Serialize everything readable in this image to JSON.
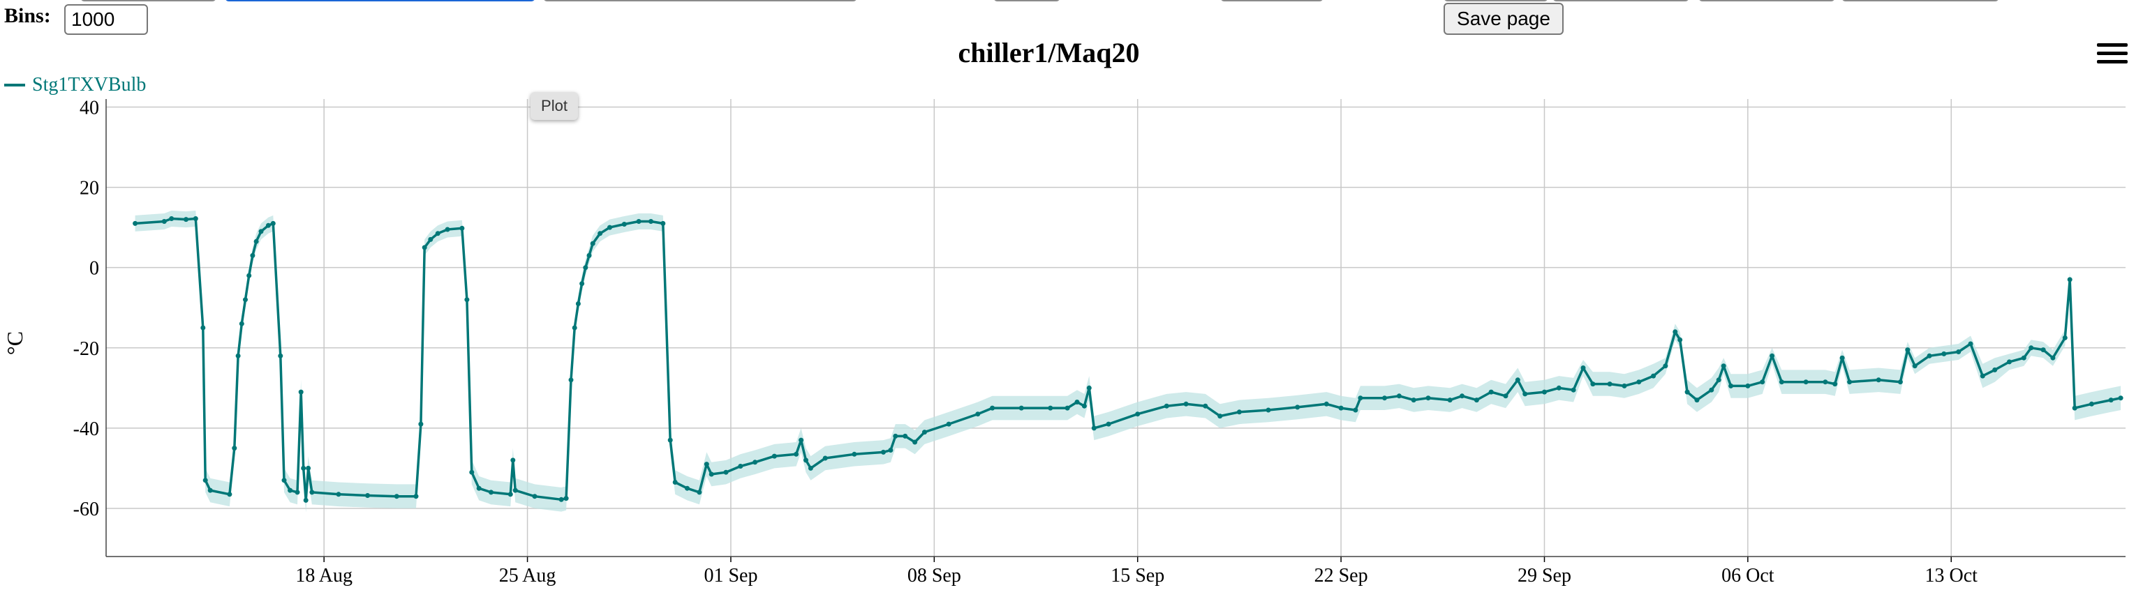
{
  "controls": {
    "bins_label": "Bins:",
    "bins_value": "1000",
    "save_label": "Save page",
    "tooltip": "Plot"
  },
  "chart_data": {
    "type": "line",
    "title": "chiller1/Maq20",
    "xlabel": "",
    "ylabel": "°C",
    "ylim": [
      -72,
      42
    ],
    "yticks": [
      40,
      20,
      0,
      -20,
      -40,
      -60
    ],
    "xlim": [
      "2024-08-10T12:00",
      "2024-10-19T00:00"
    ],
    "xticks": [
      {
        "date": "2024-08-18",
        "label": "18 Aug"
      },
      {
        "date": "2024-08-25",
        "label": "25 Aug"
      },
      {
        "date": "2024-09-01",
        "label": "01 Sep"
      },
      {
        "date": "2024-09-08",
        "label": "08 Sep"
      },
      {
        "date": "2024-09-15",
        "label": "15 Sep"
      },
      {
        "date": "2024-09-22",
        "label": "22 Sep"
      },
      {
        "date": "2024-09-29",
        "label": "29 Sep"
      },
      {
        "date": "2024-10-06",
        "label": "06 Oct"
      },
      {
        "date": "2024-10-13",
        "label": "13 Oct"
      }
    ],
    "grid": true,
    "legend_position": "top-left",
    "series": [
      {
        "name": "Stg1TXVBulb",
        "color": "#007777",
        "band_color": "#bfe3e3",
        "points": [
          [
            "2024-08-11T12:00",
            11
          ],
          [
            "2024-08-12T12:00",
            11.5
          ],
          [
            "2024-08-12T18:00",
            12.2
          ],
          [
            "2024-08-13T06:00",
            12
          ],
          [
            "2024-08-13T14:00",
            12.2
          ],
          [
            "2024-08-13T20:00",
            -15
          ],
          [
            "2024-08-13T22:00",
            -53
          ],
          [
            "2024-08-14T02:00",
            -55.5
          ],
          [
            "2024-08-14T18:00",
            -56.5
          ],
          [
            "2024-08-14T22:00",
            -45
          ],
          [
            "2024-08-15T01:00",
            -22
          ],
          [
            "2024-08-15T04:00",
            -14
          ],
          [
            "2024-08-15T07:00",
            -8
          ],
          [
            "2024-08-15T10:00",
            -2
          ],
          [
            "2024-08-15T13:00",
            3
          ],
          [
            "2024-08-15T16:00",
            6.5
          ],
          [
            "2024-08-15T20:00",
            9
          ],
          [
            "2024-08-16T02:00",
            10.5
          ],
          [
            "2024-08-16T06:00",
            11
          ],
          [
            "2024-08-16T12:00",
            -22
          ],
          [
            "2024-08-16T15:00",
            -53
          ],
          [
            "2024-08-16T20:00",
            -55.5
          ],
          [
            "2024-08-17T02:00",
            -56
          ],
          [
            "2024-08-17T05:00",
            -31
          ],
          [
            "2024-08-17T07:00",
            -50
          ],
          [
            "2024-08-17T09:00",
            -58
          ],
          [
            "2024-08-17T11:00",
            -50
          ],
          [
            "2024-08-17T14:00",
            -56
          ],
          [
            "2024-08-18T12:00",
            -56.5
          ],
          [
            "2024-08-19T12:00",
            -56.8
          ],
          [
            "2024-08-20T12:00",
            -57
          ],
          [
            "2024-08-21T04:00",
            -57
          ],
          [
            "2024-08-21T08:00",
            -39
          ],
          [
            "2024-08-21T11:00",
            5
          ],
          [
            "2024-08-21T16:00",
            7
          ],
          [
            "2024-08-21T22:00",
            8.5
          ],
          [
            "2024-08-22T06:00",
            9.5
          ],
          [
            "2024-08-22T18:00",
            9.8
          ],
          [
            "2024-08-22T22:00",
            -8
          ],
          [
            "2024-08-23T02:00",
            -51
          ],
          [
            "2024-08-23T08:00",
            -55
          ],
          [
            "2024-08-23T18:00",
            -56
          ],
          [
            "2024-08-24T10:00",
            -56.5
          ],
          [
            "2024-08-24T12:00",
            -48
          ],
          [
            "2024-08-24T14:00",
            -55.5
          ],
          [
            "2024-08-25T06:00",
            -57
          ],
          [
            "2024-08-26T04:00",
            -57.8
          ],
          [
            "2024-08-26T08:00",
            -57.5
          ],
          [
            "2024-08-26T12:00",
            -28
          ],
          [
            "2024-08-26T15:00",
            -15
          ],
          [
            "2024-08-26T18:00",
            -9
          ],
          [
            "2024-08-26T21:00",
            -4
          ],
          [
            "2024-08-27T00:00",
            0
          ],
          [
            "2024-08-27T03:00",
            3
          ],
          [
            "2024-08-27T06:00",
            6
          ],
          [
            "2024-08-27T12:00",
            8.5
          ],
          [
            "2024-08-27T20:00",
            10
          ],
          [
            "2024-08-28T08:00",
            10.8
          ],
          [
            "2024-08-28T20:00",
            11.5
          ],
          [
            "2024-08-29T06:00",
            11.5
          ],
          [
            "2024-08-29T16:00",
            11
          ],
          [
            "2024-08-29T22:00",
            -43
          ],
          [
            "2024-08-30T02:00",
            -53.5
          ],
          [
            "2024-08-30T12:00",
            -55
          ],
          [
            "2024-08-30T22:00",
            -56
          ],
          [
            "2024-08-31T04:00",
            -49
          ],
          [
            "2024-08-31T08:00",
            -51.5
          ],
          [
            "2024-08-31T20:00",
            -51
          ],
          [
            "2024-09-01T08:00",
            -49.5
          ],
          [
            "2024-09-01T20:00",
            -48.5
          ],
          [
            "2024-09-02T12:00",
            -47
          ],
          [
            "2024-09-03T06:00",
            -46.5
          ],
          [
            "2024-09-03T10:00",
            -43
          ],
          [
            "2024-09-03T14:00",
            -48
          ],
          [
            "2024-09-03T18:00",
            -50
          ],
          [
            "2024-09-04T06:00",
            -47.5
          ],
          [
            "2024-09-05T06:00",
            -46.5
          ],
          [
            "2024-09-06T06:00",
            -46
          ],
          [
            "2024-09-06T12:00",
            -45.5
          ],
          [
            "2024-09-06T16:00",
            -42
          ],
          [
            "2024-09-07T00:00",
            -42
          ],
          [
            "2024-09-07T08:00",
            -43.5
          ],
          [
            "2024-09-07T16:00",
            -41
          ],
          [
            "2024-09-08T12:00",
            -39
          ],
          [
            "2024-09-09T12:00",
            -36.5
          ],
          [
            "2024-09-10T00:00",
            -35
          ],
          [
            "2024-09-11T00:00",
            -35
          ],
          [
            "2024-09-12T00:00",
            -35
          ],
          [
            "2024-09-12T14:00",
            -35
          ],
          [
            "2024-09-12T22:00",
            -33.5
          ],
          [
            "2024-09-13T04:00",
            -34.5
          ],
          [
            "2024-09-13T08:00",
            -30
          ],
          [
            "2024-09-13T12:00",
            -40
          ],
          [
            "2024-09-14T00:00",
            -39
          ],
          [
            "2024-09-15T00:00",
            -36.5
          ],
          [
            "2024-09-16T00:00",
            -34.5
          ],
          [
            "2024-09-16T16:00",
            -34
          ],
          [
            "2024-09-17T08:00",
            -34.5
          ],
          [
            "2024-09-17T20:00",
            -37
          ],
          [
            "2024-09-18T12:00",
            -36
          ],
          [
            "2024-09-19T12:00",
            -35.5
          ],
          [
            "2024-09-20T12:00",
            -34.8
          ],
          [
            "2024-09-21T12:00",
            -34
          ],
          [
            "2024-09-22T00:00",
            -35
          ],
          [
            "2024-09-22T12:00",
            -35.5
          ],
          [
            "2024-09-22T16:00",
            -32.5
          ],
          [
            "2024-09-23T12:00",
            -32.5
          ],
          [
            "2024-09-24T00:00",
            -32
          ],
          [
            "2024-09-24T12:00",
            -33
          ],
          [
            "2024-09-25T00:00",
            -32.5
          ],
          [
            "2024-09-25T18:00",
            -33
          ],
          [
            "2024-09-26T04:00",
            -32
          ],
          [
            "2024-09-26T16:00",
            -33
          ],
          [
            "2024-09-27T04:00",
            -31
          ],
          [
            "2024-09-27T16:00",
            -32
          ],
          [
            "2024-09-28T02:00",
            -28
          ],
          [
            "2024-09-28T08:00",
            -31.5
          ],
          [
            "2024-09-29T00:00",
            -31
          ],
          [
            "2024-09-29T12:00",
            -30
          ],
          [
            "2024-09-30T00:00",
            -30.5
          ],
          [
            "2024-09-30T08:00",
            -25
          ],
          [
            "2024-09-30T16:00",
            -29
          ],
          [
            "2024-10-01T06:00",
            -29
          ],
          [
            "2024-10-01T18:00",
            -29.5
          ],
          [
            "2024-10-02T06:00",
            -28.5
          ],
          [
            "2024-10-02T18:00",
            -27
          ],
          [
            "2024-10-03T04:00",
            -24.5
          ],
          [
            "2024-10-03T12:00",
            -16
          ],
          [
            "2024-10-03T16:00",
            -18
          ],
          [
            "2024-10-03T22:00",
            -31
          ],
          [
            "2024-10-04T06:00",
            -33
          ],
          [
            "2024-10-04T18:00",
            -30.5
          ],
          [
            "2024-10-05T00:00",
            -28
          ],
          [
            "2024-10-05T04:00",
            -24.5
          ],
          [
            "2024-10-05T10:00",
            -29.5
          ],
          [
            "2024-10-06T00:00",
            -29.5
          ],
          [
            "2024-10-06T12:00",
            -28.5
          ],
          [
            "2024-10-06T20:00",
            -22
          ],
          [
            "2024-10-07T04:00",
            -28.5
          ],
          [
            "2024-10-08T00:00",
            -28.5
          ],
          [
            "2024-10-08T16:00",
            -28.5
          ],
          [
            "2024-10-09T00:00",
            -29
          ],
          [
            "2024-10-09T06:00",
            -22.5
          ],
          [
            "2024-10-09T12:00",
            -28.5
          ],
          [
            "2024-10-10T12:00",
            -28
          ],
          [
            "2024-10-11T06:00",
            -28.5
          ],
          [
            "2024-10-11T12:00",
            -20.5
          ],
          [
            "2024-10-11T18:00",
            -24.5
          ],
          [
            "2024-10-12T06:00",
            -22
          ],
          [
            "2024-10-12T18:00",
            -21.5
          ],
          [
            "2024-10-13T06:00",
            -21
          ],
          [
            "2024-10-13T16:00",
            -19
          ],
          [
            "2024-10-14T02:00",
            -27
          ],
          [
            "2024-10-14T12:00",
            -25.5
          ],
          [
            "2024-10-15T00:00",
            -23.5
          ],
          [
            "2024-10-15T12:00",
            -22.5
          ],
          [
            "2024-10-15T18:00",
            -20
          ],
          [
            "2024-10-16T04:00",
            -20.5
          ],
          [
            "2024-10-16T12:00",
            -22.5
          ],
          [
            "2024-10-16T22:00",
            -17.5
          ],
          [
            "2024-10-17T02:00",
            -3
          ],
          [
            "2024-10-17T06:00",
            -35
          ],
          [
            "2024-10-17T20:00",
            -34
          ],
          [
            "2024-10-18T12:00",
            -33
          ],
          [
            "2024-10-18T20:00",
            -32.5
          ]
        ]
      }
    ]
  }
}
